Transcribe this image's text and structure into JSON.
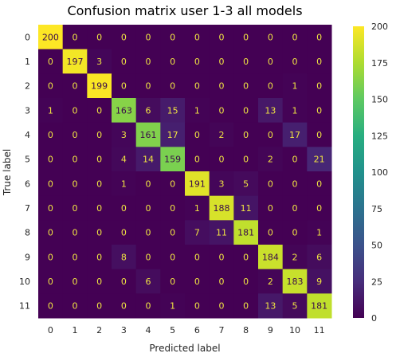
{
  "chart_data": {
    "type": "heatmap",
    "title": "Confusion matrix user 1-3 all models",
    "xlabel": "Predicted label",
    "ylabel": "True label",
    "x_categories": [
      "0",
      "1",
      "2",
      "3",
      "4",
      "5",
      "6",
      "7",
      "8",
      "9",
      "10",
      "11"
    ],
    "y_categories": [
      "0",
      "1",
      "2",
      "3",
      "4",
      "5",
      "6",
      "7",
      "8",
      "9",
      "10",
      "11"
    ],
    "values": [
      [
        200,
        0,
        0,
        0,
        0,
        0,
        0,
        0,
        0,
        0,
        0,
        0
      ],
      [
        0,
        197,
        3,
        0,
        0,
        0,
        0,
        0,
        0,
        0,
        0,
        0
      ],
      [
        0,
        0,
        199,
        0,
        0,
        0,
        0,
        0,
        0,
        0,
        1,
        0
      ],
      [
        1,
        0,
        0,
        163,
        6,
        15,
        1,
        0,
        0,
        13,
        1,
        0
      ],
      [
        0,
        0,
        0,
        3,
        161,
        17,
        0,
        2,
        0,
        0,
        17,
        0
      ],
      [
        0,
        0,
        0,
        4,
        14,
        159,
        0,
        0,
        0,
        2,
        0,
        21
      ],
      [
        0,
        0,
        0,
        1,
        0,
        0,
        191,
        3,
        5,
        0,
        0,
        0
      ],
      [
        0,
        0,
        0,
        0,
        0,
        0,
        1,
        188,
        11,
        0,
        0,
        0
      ],
      [
        0,
        0,
        0,
        0,
        0,
        0,
        7,
        11,
        181,
        0,
        0,
        1
      ],
      [
        0,
        0,
        0,
        8,
        0,
        0,
        0,
        0,
        0,
        184,
        2,
        6
      ],
      [
        0,
        0,
        0,
        0,
        6,
        0,
        0,
        0,
        0,
        2,
        183,
        9
      ],
      [
        0,
        0,
        0,
        0,
        0,
        1,
        0,
        0,
        0,
        13,
        5,
        181
      ]
    ],
    "colormap": "viridis",
    "value_range": [
      0,
      200
    ],
    "colorbar_ticks": [
      0,
      25,
      50,
      75,
      100,
      125,
      150,
      175,
      200
    ],
    "colorbar_tick_labels": [
      "0",
      "25",
      "50",
      "75",
      "100",
      "125",
      "150",
      "175",
      "200"
    ],
    "grid": false
  }
}
